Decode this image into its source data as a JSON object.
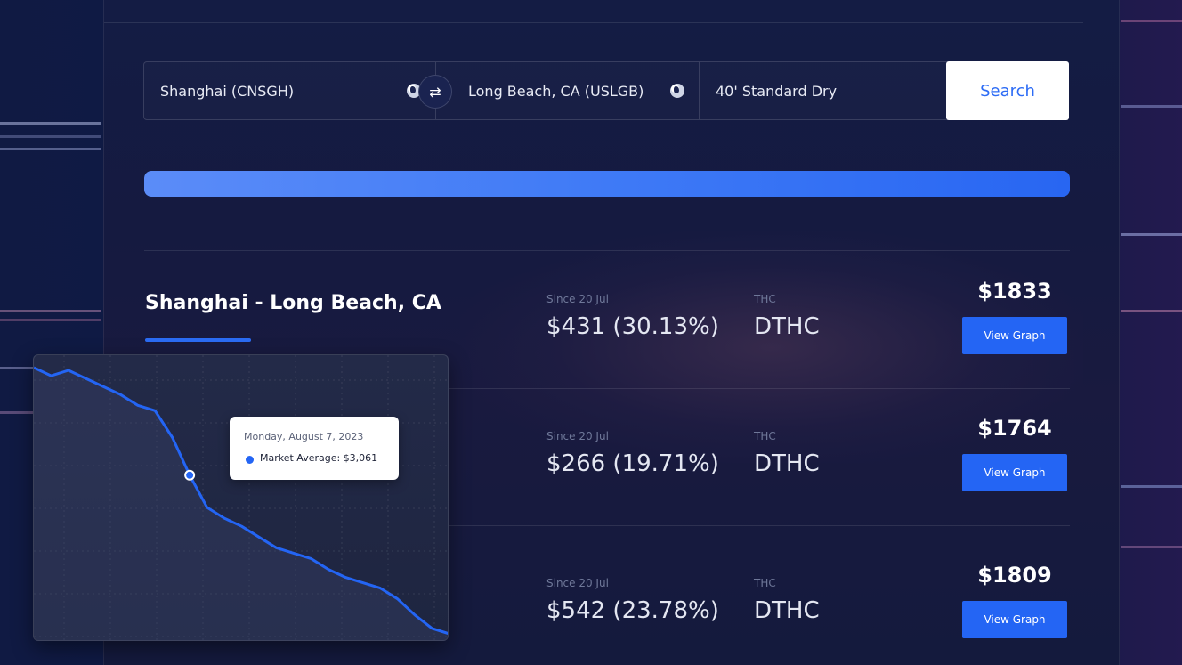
{
  "search": {
    "origin": "Shanghai (CNSGH)",
    "destination": "Long Beach, CA (USLGB)",
    "container": "40' Standard Dry",
    "button_label": "Search",
    "swap_glyph": "⇄"
  },
  "progress": {
    "fraction": 1.0
  },
  "route": {
    "title": "Shanghai - Long Beach, CA"
  },
  "results": [
    {
      "since_label": "Since 20 Jul",
      "change": "$431 (30.13%)",
      "thc_label": "THC",
      "thc_value": "DTHC",
      "price": "$1833",
      "button_label": "View Graph"
    },
    {
      "since_label": "Since 20 Jul",
      "change": "$266 (19.71%)",
      "thc_label": "THC",
      "thc_value": "DTHC",
      "price": "$1764",
      "button_label": "View Graph"
    },
    {
      "since_label": "Since 20 Jul",
      "change": "$542 (23.78%)",
      "thc_label": "THC",
      "thc_value": "DTHC",
      "price": "$1809",
      "button_label": "View Graph"
    }
  ],
  "chart_data": {
    "type": "line",
    "title": "",
    "xlabel": "",
    "ylabel": "",
    "grid": true,
    "color": "#2465f4",
    "series": [
      {
        "name": "Market Average",
        "values": [
          100,
          97,
          99,
          96,
          93,
          90,
          86,
          84,
          74,
          60,
          48,
          44,
          41,
          37,
          33,
          31,
          29,
          25,
          22,
          20,
          18,
          14,
          8,
          3,
          1
        ]
      }
    ],
    "highlight_index": 9,
    "tooltip": {
      "date": "Monday, August 7, 2023",
      "series_text": "Market Average: $3,061"
    }
  },
  "colors": {
    "accent": "#2465f4",
    "background": "#0d1533"
  },
  "icons": [
    "globe-icon",
    "swap-icon"
  ]
}
